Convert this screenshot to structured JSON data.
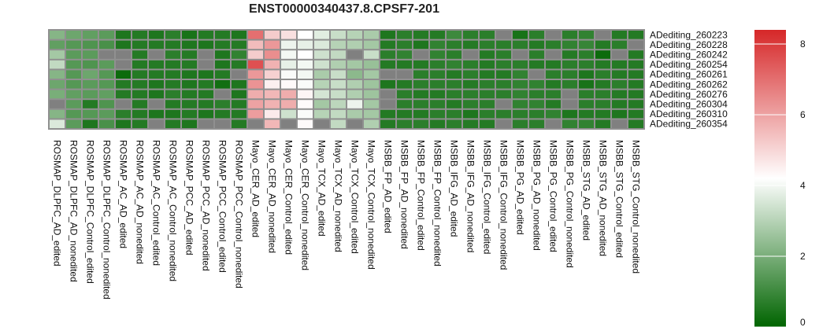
{
  "chart_data": {
    "type": "heatmap",
    "title": "ENST00000340437.8.CPSF7-201",
    "columns": [
      "ROSMAP_DLPFC_AD_edited",
      "ROSMAP_DLPFC_AD_nonedited",
      "ROSMAP_DLPFC_Control_edited",
      "ROSMAP_DLPFC_Control_nonedited",
      "ROSMAP_AC_AD_edited",
      "ROSMAP_AC_AD_nonedited",
      "ROSMAP_AC_Control_edited",
      "ROSMAP_AC_Control_nonedited",
      "ROSMAP_PCC_AD_edited",
      "ROSMAP_PCC_AD_nonedited",
      "ROSMAP_PCC_Control_edited",
      "ROSMAP_PCC_Control_nonedited",
      "Mayo_CER_AD_edited",
      "Mayo_CER_AD_nonedited",
      "Mayo_CER_Control_edited",
      "Mayo_CER_Control_nonedited",
      "Mayo_TCX_AD_edited",
      "Mayo_TCX_AD_nonedited",
      "Mayo_TCX_Control_edited",
      "Mayo_TCX_Control_nonedited",
      "MSBB_FP_AD_edited",
      "MSBB_FP_AD_nonedited",
      "MSBB_FP_Control_edited",
      "MSBB_FP_Control_nonedited",
      "MSBB_IFG_AD_edited",
      "MSBB_IFG_AD_nonedited",
      "MSBB_IFG_Control_edited",
      "MSBB_IFG_Control_nonedited",
      "MSBB_PG_AD_edited",
      "MSBB_PG_AD_nonedited",
      "MSBB_PG_Control_edited",
      "MSBB_PG_Control_nonedited",
      "MSBB_STG_AD_edited",
      "MSBB_STG_AD_nonedited",
      "MSBB_STG_Control_edited",
      "MSBB_STG_Control_nonedited"
    ],
    "rows": [
      "ADediting_260223",
      "ADediting_260228",
      "ADediting_260242",
      "ADediting_260254",
      "ADediting_260261",
      "ADediting_260262",
      "ADediting_260276",
      "ADediting_260304",
      "ADediting_260310",
      "ADediting_260354"
    ],
    "values": [
      [
        2.2,
        1.8,
        1.6,
        1.5,
        0.5,
        0.6,
        0.5,
        0.7,
        0.4,
        0.6,
        0.6,
        0.5,
        7.0,
        5.2,
        4.8,
        4.2,
        3.7,
        3.3,
        3.0,
        2.8,
        0.5,
        0.7,
        0.6,
        0.6,
        1.0,
        0.7,
        0.7,
        null,
        0.4,
        0.7,
        null,
        0.7,
        0.8,
        null,
        0.6,
        0.6
      ],
      [
        1.6,
        1.4,
        1.3,
        1.2,
        0.5,
        0.6,
        0.6,
        0.6,
        0.5,
        0.5,
        0.6,
        0.6,
        5.5,
        6.2,
        3.9,
        3.8,
        3.6,
        3.0,
        2.9,
        2.7,
        0.6,
        0.7,
        0.5,
        0.8,
        0.7,
        0.6,
        0.7,
        0.7,
        0.7,
        0.6,
        0.7,
        0.8,
        0.9,
        0.6,
        0.7,
        null
      ],
      [
        2.7,
        1.5,
        1.5,
        null,
        null,
        0.6,
        null,
        0.7,
        0.6,
        null,
        0.5,
        0.8,
        5.2,
        6.4,
        4.0,
        4.2,
        3.4,
        3.2,
        null,
        3.3,
        0.7,
        0.8,
        null,
        0.8,
        0.7,
        null,
        0.6,
        0.7,
        null,
        0.7,
        null,
        0.6,
        0.7,
        0.2,
        null,
        0.6
      ],
      [
        3.2,
        1.4,
        1.3,
        1.5,
        null,
        0.6,
        0.6,
        0.6,
        0.6,
        null,
        0.5,
        0.6,
        7.6,
        5.7,
        3.8,
        4.0,
        3.4,
        2.9,
        2.7,
        2.5,
        0.6,
        0.6,
        0.6,
        0.7,
        0.8,
        0.7,
        0.6,
        0.7,
        0.7,
        0.6,
        0.6,
        0.7,
        0.7,
        0.6,
        0.6,
        0.6
      ],
      [
        2.2,
        1.4,
        1.8,
        1.4,
        0.2,
        0.6,
        0.6,
        0.6,
        0.5,
        0.5,
        0.6,
        null,
        6.2,
        5.1,
        4.1,
        4.0,
        2.8,
        3.3,
        2.3,
        2.7,
        null,
        null,
        0.7,
        0.7,
        0.6,
        0.7,
        0.6,
        0.6,
        0.8,
        null,
        0.7,
        0.7,
        0.5,
        0.7,
        0.6,
        0.6
      ],
      [
        1.8,
        1.4,
        1.5,
        1.4,
        0.6,
        0.6,
        0.5,
        0.6,
        0.5,
        0.6,
        0.3,
        0.5,
        6.3,
        4.5,
        4.3,
        4.1,
        3.0,
        3.3,
        2.9,
        2.6,
        0.5,
        0.6,
        0.7,
        0.7,
        0.7,
        0.6,
        0.7,
        0.7,
        0.8,
        0.8,
        0.6,
        0.7,
        0.4,
        0.6,
        0.7,
        0.6
      ],
      [
        2.0,
        1.6,
        1.5,
        1.6,
        0.6,
        0.6,
        0.5,
        0.7,
        0.6,
        0.6,
        null,
        0.5,
        5.8,
        5.6,
        5.8,
        4.4,
        3.5,
        3.3,
        2.9,
        2.6,
        null,
        0.7,
        0.6,
        0.6,
        0.7,
        0.7,
        0.7,
        0.7,
        0.8,
        0.7,
        0.7,
        null,
        0.7,
        0.7,
        0.6,
        0.6
      ],
      [
        null,
        1.5,
        0.6,
        1.3,
        null,
        0.6,
        null,
        0.6,
        0.6,
        0.6,
        0.7,
        0.6,
        6.0,
        5.7,
        5.8,
        4.3,
        2.7,
        3.1,
        3.9,
        2.7,
        null,
        0.7,
        0.7,
        0.7,
        0.6,
        0.7,
        0.7,
        null,
        0.8,
        0.8,
        0.6,
        null,
        0.7,
        0.7,
        0.6,
        0.6
      ],
      [
        2.2,
        1.4,
        1.4,
        1.5,
        0.7,
        0.6,
        0.5,
        0.5,
        0.6,
        0.5,
        0.6,
        0.6,
        6.1,
        4.6,
        3.4,
        4.1,
        3.0,
        3.2,
        2.8,
        2.7,
        0.6,
        0.6,
        0.6,
        0.7,
        0.7,
        0.5,
        0.7,
        0.7,
        0.7,
        0.7,
        0.8,
        0.5,
        0.6,
        0.6,
        0.5,
        0.6
      ],
      [
        3.6,
        1.5,
        0.5,
        1.2,
        0.5,
        0.6,
        null,
        0.6,
        0.5,
        null,
        null,
        0.6,
        null,
        5.6,
        null,
        4.3,
        null,
        3.2,
        null,
        2.9,
        0.6,
        0.7,
        0.7,
        0.6,
        0.7,
        0.6,
        0.6,
        null,
        0.7,
        0.7,
        null,
        0.8,
        0.8,
        0.6,
        null,
        0.6
      ]
    ],
    "legend": {
      "range": [
        0,
        8.4
      ],
      "ticks": [
        0,
        2,
        4,
        6,
        8
      ],
      "colors": {
        "low": "#006400",
        "mid": "#ffffff",
        "high": "#d62728"
      }
    },
    "na_color": "#808080",
    "border_color": "#909090"
  }
}
